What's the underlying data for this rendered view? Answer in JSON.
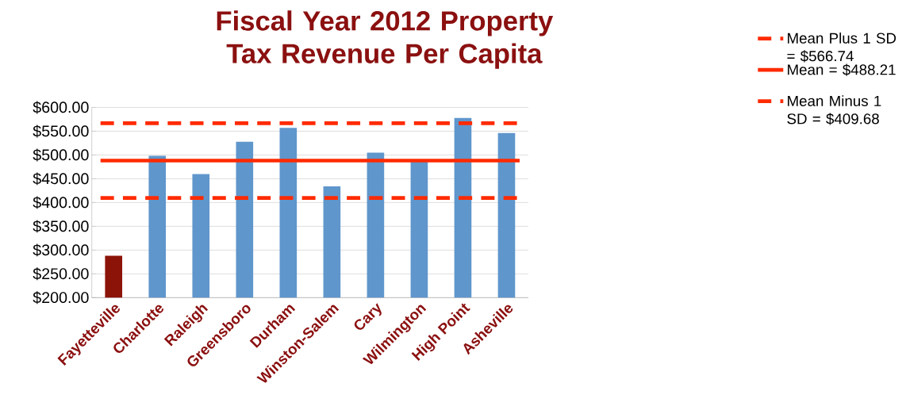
{
  "chart_data": {
    "type": "bar",
    "title": "Fiscal Year 2012 Property Tax Revenue Per Capita",
    "categories": [
      "Fayetteville",
      "Charlotte",
      "Raleigh",
      "Greensboro",
      "Durham",
      "Winston-Salem",
      "Cary",
      "Wilmington",
      "High Point",
      "Asheville"
    ],
    "values": [
      288,
      498,
      460,
      528,
      557,
      434,
      505,
      488,
      578,
      546
    ],
    "colors": [
      "#8b1308",
      "#5f96cc",
      "#5f96cc",
      "#5f96cc",
      "#5f96cc",
      "#5f96cc",
      "#5f96cc",
      "#5f96cc",
      "#5f96cc",
      "#5f96cc"
    ],
    "ylim": [
      200,
      600
    ],
    "yticks": [
      {
        "value": 200,
        "label": "$200.00"
      },
      {
        "value": 250,
        "label": "$250.00"
      },
      {
        "value": 300,
        "label": "$300.00"
      },
      {
        "value": 350,
        "label": "$350.00"
      },
      {
        "value": 400,
        "label": "$400.00"
      },
      {
        "value": 450,
        "label": "$450.00"
      },
      {
        "value": 500,
        "label": "$500.00"
      },
      {
        "value": 550,
        "label": "$550.00"
      },
      {
        "value": 600,
        "label": "$600.00"
      }
    ],
    "grid": "y",
    "legend": "right",
    "ref_lines": [
      {
        "axis": "y",
        "value": 566.74,
        "label": "Mean Plus 1 SD = $566.74",
        "color": "#ff2a00",
        "line_style": "dashed"
      },
      {
        "axis": "y",
        "value": 488.21,
        "label": "Mean = $488.21",
        "color": "#ff2a00",
        "line_style": "solid"
      },
      {
        "axis": "y",
        "value": 409.68,
        "label": "Mean Minus 1 SD = $409.68",
        "color": "#ff2a00",
        "line_style": "dashed"
      }
    ]
  }
}
